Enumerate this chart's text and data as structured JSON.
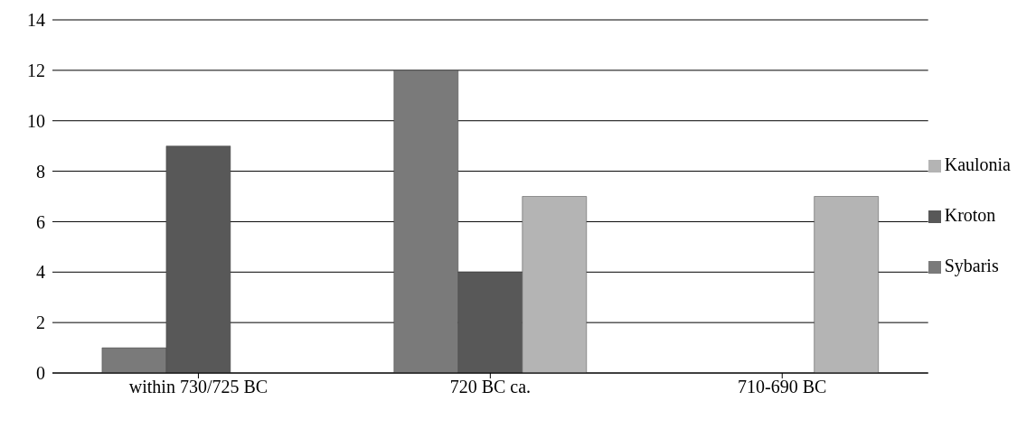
{
  "chart_data": {
    "type": "bar",
    "categories": [
      "within 730/725 BC",
      "720 BC ca.",
      "710-690 BC"
    ],
    "series": [
      {
        "name": "Sybaris",
        "color": "#7a7a7a",
        "values": [
          1,
          12,
          0
        ]
      },
      {
        "name": "Kroton",
        "color": "#585858",
        "values": [
          9,
          4,
          0
        ]
      },
      {
        "name": "Kaulonia",
        "color": "#b4b4b4",
        "values": [
          0,
          7,
          7
        ]
      }
    ],
    "ylim": [
      0,
      14
    ],
    "yticks": [
      0,
      2,
      4,
      6,
      8,
      10,
      12,
      14
    ],
    "grid": "y",
    "legend": "right"
  }
}
